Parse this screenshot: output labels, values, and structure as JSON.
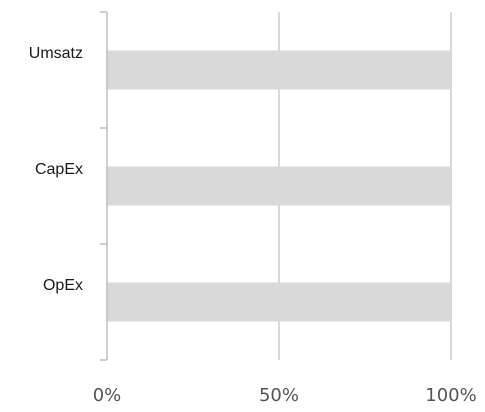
{
  "chart_data": {
    "type": "bar",
    "orientation": "horizontal",
    "stacked": true,
    "categories": [
      "Umsatz",
      "CapEx",
      "OpEx"
    ],
    "series": [
      {
        "values": [
          100,
          100,
          100
        ],
        "color": "#d9d9d9"
      }
    ],
    "xlim": [
      0,
      100
    ],
    "xticks": [
      0,
      50,
      100
    ],
    "xtick_labels": [
      "0%",
      "50%",
      "100%"
    ],
    "grid": true,
    "legend": "none",
    "colors": {
      "bar": "#d9d9d9",
      "grid": "#d9d9d9",
      "axis": "#bfbfbf"
    }
  }
}
